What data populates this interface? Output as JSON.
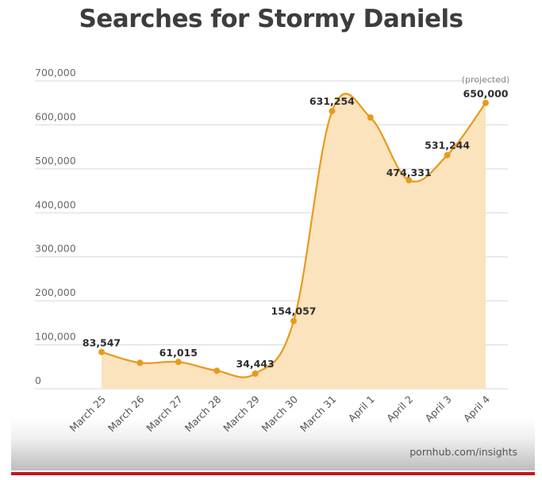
{
  "header": {
    "title": "Searches for Stormy Daniels"
  },
  "footer": {
    "source": "pornhub.com/insights"
  },
  "colors": {
    "line": "#e89a1c",
    "fill": "#fbe3bd",
    "grid": "#d8d8d8",
    "title": "#3d3d3d",
    "accent_bar": "#c4161c"
  },
  "chart_data": {
    "type": "area",
    "title": "Searches for Stormy Daniels",
    "xlabel": "",
    "ylabel": "",
    "categories": [
      "March 25",
      "March 26",
      "March 27",
      "March 28",
      "March 29",
      "March 30",
      "March 31",
      "April 1",
      "April 2",
      "April 3",
      "April 4"
    ],
    "series": [
      {
        "name": "Searches",
        "values": [
          83547,
          59000,
          61015,
          41000,
          34443,
          154057,
          631254,
          617000,
          474331,
          531244,
          650000
        ]
      }
    ],
    "data_labels": [
      {
        "index": 0,
        "text": "83,547"
      },
      {
        "index": 2,
        "text": "61,015"
      },
      {
        "index": 4,
        "text": "34,443"
      },
      {
        "index": 5,
        "text": "154,057"
      },
      {
        "index": 6,
        "text": "631,254"
      },
      {
        "index": 8,
        "text": "474,331"
      },
      {
        "index": 9,
        "text": "531,244"
      },
      {
        "index": 10,
        "text": "650,000"
      }
    ],
    "annotations": [
      {
        "index": 10,
        "text": "(projected)"
      }
    ],
    "yticks": [
      "0",
      "100,000",
      "200,000",
      "300,000",
      "400,000",
      "500,000",
      "600,000",
      "700,000"
    ],
    "ylim": [
      0,
      700000
    ],
    "grid": true,
    "legend": "none"
  }
}
